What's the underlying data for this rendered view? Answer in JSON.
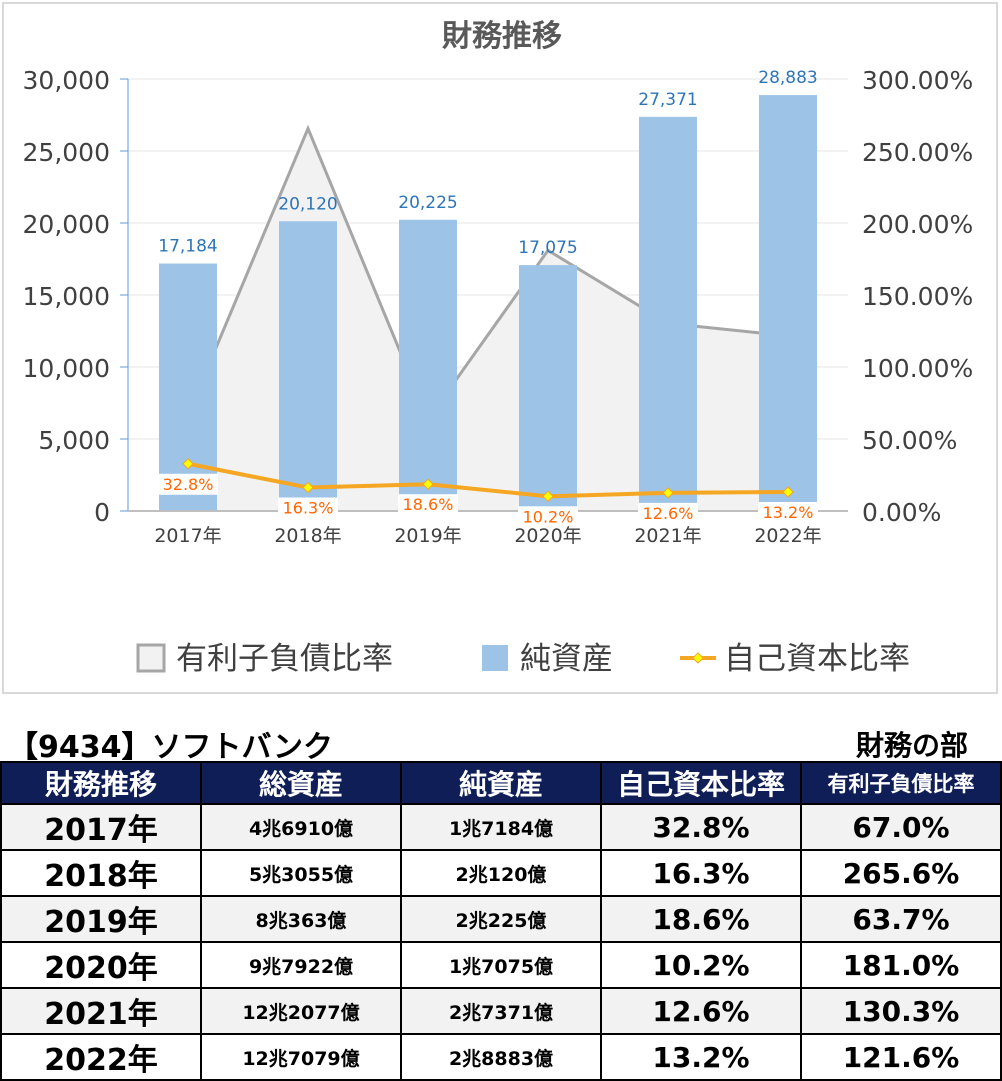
{
  "chart_data": {
    "type": "bar",
    "title": "財務推移",
    "categories": [
      "2017年",
      "2018年",
      "2019年",
      "2020年",
      "2021年",
      "2022年"
    ],
    "series": [
      {
        "name": "有利子負債比率",
        "type": "area",
        "axis": "right",
        "values": [
          67.0,
          265.6,
          63.7,
          181.0,
          130.3,
          121.6
        ],
        "color": "#f2f2f2",
        "line_color": "#a6a6a6"
      },
      {
        "name": "純資産",
        "type": "bar",
        "axis": "left",
        "values": [
          17184,
          20120,
          20225,
          17075,
          27371,
          28883
        ],
        "color": "#9dc3e6",
        "data_labels": [
          "17,184",
          "20,120",
          "20,225",
          "17,075",
          "27,371",
          "28,883"
        ]
      },
      {
        "name": "自己資本比率",
        "type": "line",
        "axis": "right",
        "values": [
          32.8,
          16.3,
          18.6,
          10.2,
          12.6,
          13.2
        ],
        "color": "#f5a623",
        "marker_color": "#ffff00",
        "data_labels": [
          "32.8%",
          "16.3%",
          "18.6%",
          "10.2%",
          "12.6%",
          "13.2%"
        ]
      }
    ],
    "left_axis": {
      "ylim": [
        0,
        30000
      ],
      "ticks": [
        "0",
        "5,000",
        "10,000",
        "15,000",
        "20,000",
        "25,000",
        "30,000"
      ]
    },
    "right_axis": {
      "ylim": [
        0,
        300
      ],
      "ticks": [
        "0.00%",
        "50.00%",
        "100.00%",
        "150.00%",
        "200.00%",
        "250.00%",
        "300.00%"
      ]
    },
    "legend": {
      "position": "bottom",
      "entries": [
        "有利子負債比率",
        "純資産",
        "自己資本比率"
      ]
    },
    "grid": true,
    "colors": {
      "title": "#595959",
      "bar_label": "#2e75b6",
      "ratio_label": "#ff6600",
      "axis_label": "#404040"
    }
  },
  "table": {
    "company_title": "【9434】ソフトバンク",
    "section_name": "財務の部",
    "headers": [
      "財務推移",
      "総資産",
      "純資産",
      "自己資本比率",
      "有利子負債比率"
    ],
    "rows": [
      [
        "2017年",
        "4兆6910億",
        "1兆7184億",
        "32.8%",
        "67.0%"
      ],
      [
        "2018年",
        "5兆3055億",
        "2兆120億",
        "16.3%",
        "265.6%"
      ],
      [
        "2019年",
        "8兆363億",
        "2兆225億",
        "18.6%",
        "63.7%"
      ],
      [
        "2020年",
        "9兆7922億",
        "1兆7075億",
        "10.2%",
        "181.0%"
      ],
      [
        "2021年",
        "12兆2077億",
        "2兆7371億",
        "12.6%",
        "130.3%"
      ],
      [
        "2022年",
        "12兆7079億",
        "2兆8883億",
        "13.2%",
        "121.6%"
      ]
    ],
    "header_color": "#0f1e57"
  }
}
